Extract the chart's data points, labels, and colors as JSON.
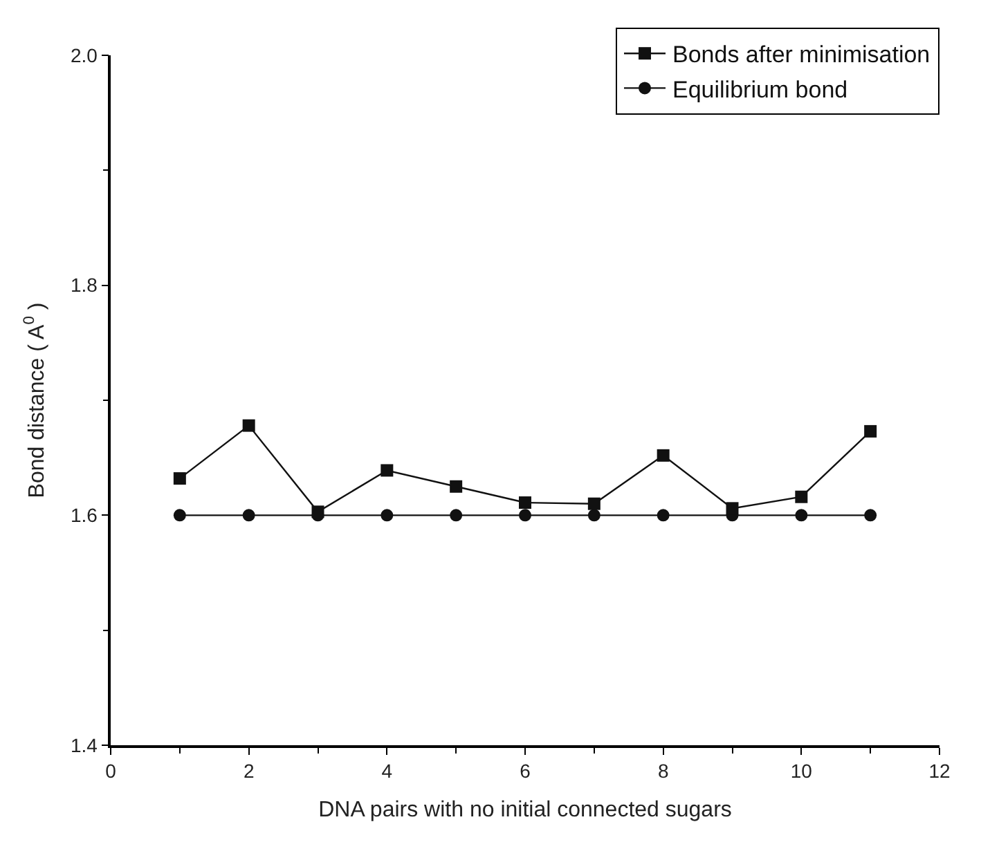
{
  "chart_data": {
    "type": "line",
    "xlabel": "DNA pairs with no initial connected sugars",
    "ylabel": "Bond distance ( A$^{0}$ )",
    "x": [
      1,
      2,
      3,
      4,
      5,
      6,
      7,
      8,
      9,
      10,
      11
    ],
    "series": [
      {
        "name": "Bonds after minimisation",
        "color": "#111111",
        "marker": "square",
        "values": [
          1.632,
          1.678,
          1.603,
          1.639,
          1.625,
          1.611,
          1.61,
          1.652,
          1.606,
          1.616,
          1.673
        ]
      },
      {
        "name": "Equilibrium bond",
        "color": "#111111",
        "marker": "circle",
        "values": [
          1.6,
          1.6,
          1.6,
          1.6,
          1.6,
          1.6,
          1.6,
          1.6,
          1.6,
          1.6,
          1.6
        ]
      }
    ],
    "xlim": [
      0,
      12
    ],
    "xticks": [
      0,
      2,
      4,
      6,
      8,
      10,
      12
    ],
    "ylim": [
      1.4,
      2.0
    ],
    "yticks": [
      {
        "value": 1.4,
        "label": "1.4"
      },
      {
        "value": 1.6,
        "label": "1.6"
      },
      {
        "value": 1.8,
        "label": "1.8"
      },
      {
        "value": 2.0,
        "label": "2.0"
      }
    ],
    "legend": "top right",
    "line_style": "solid"
  }
}
